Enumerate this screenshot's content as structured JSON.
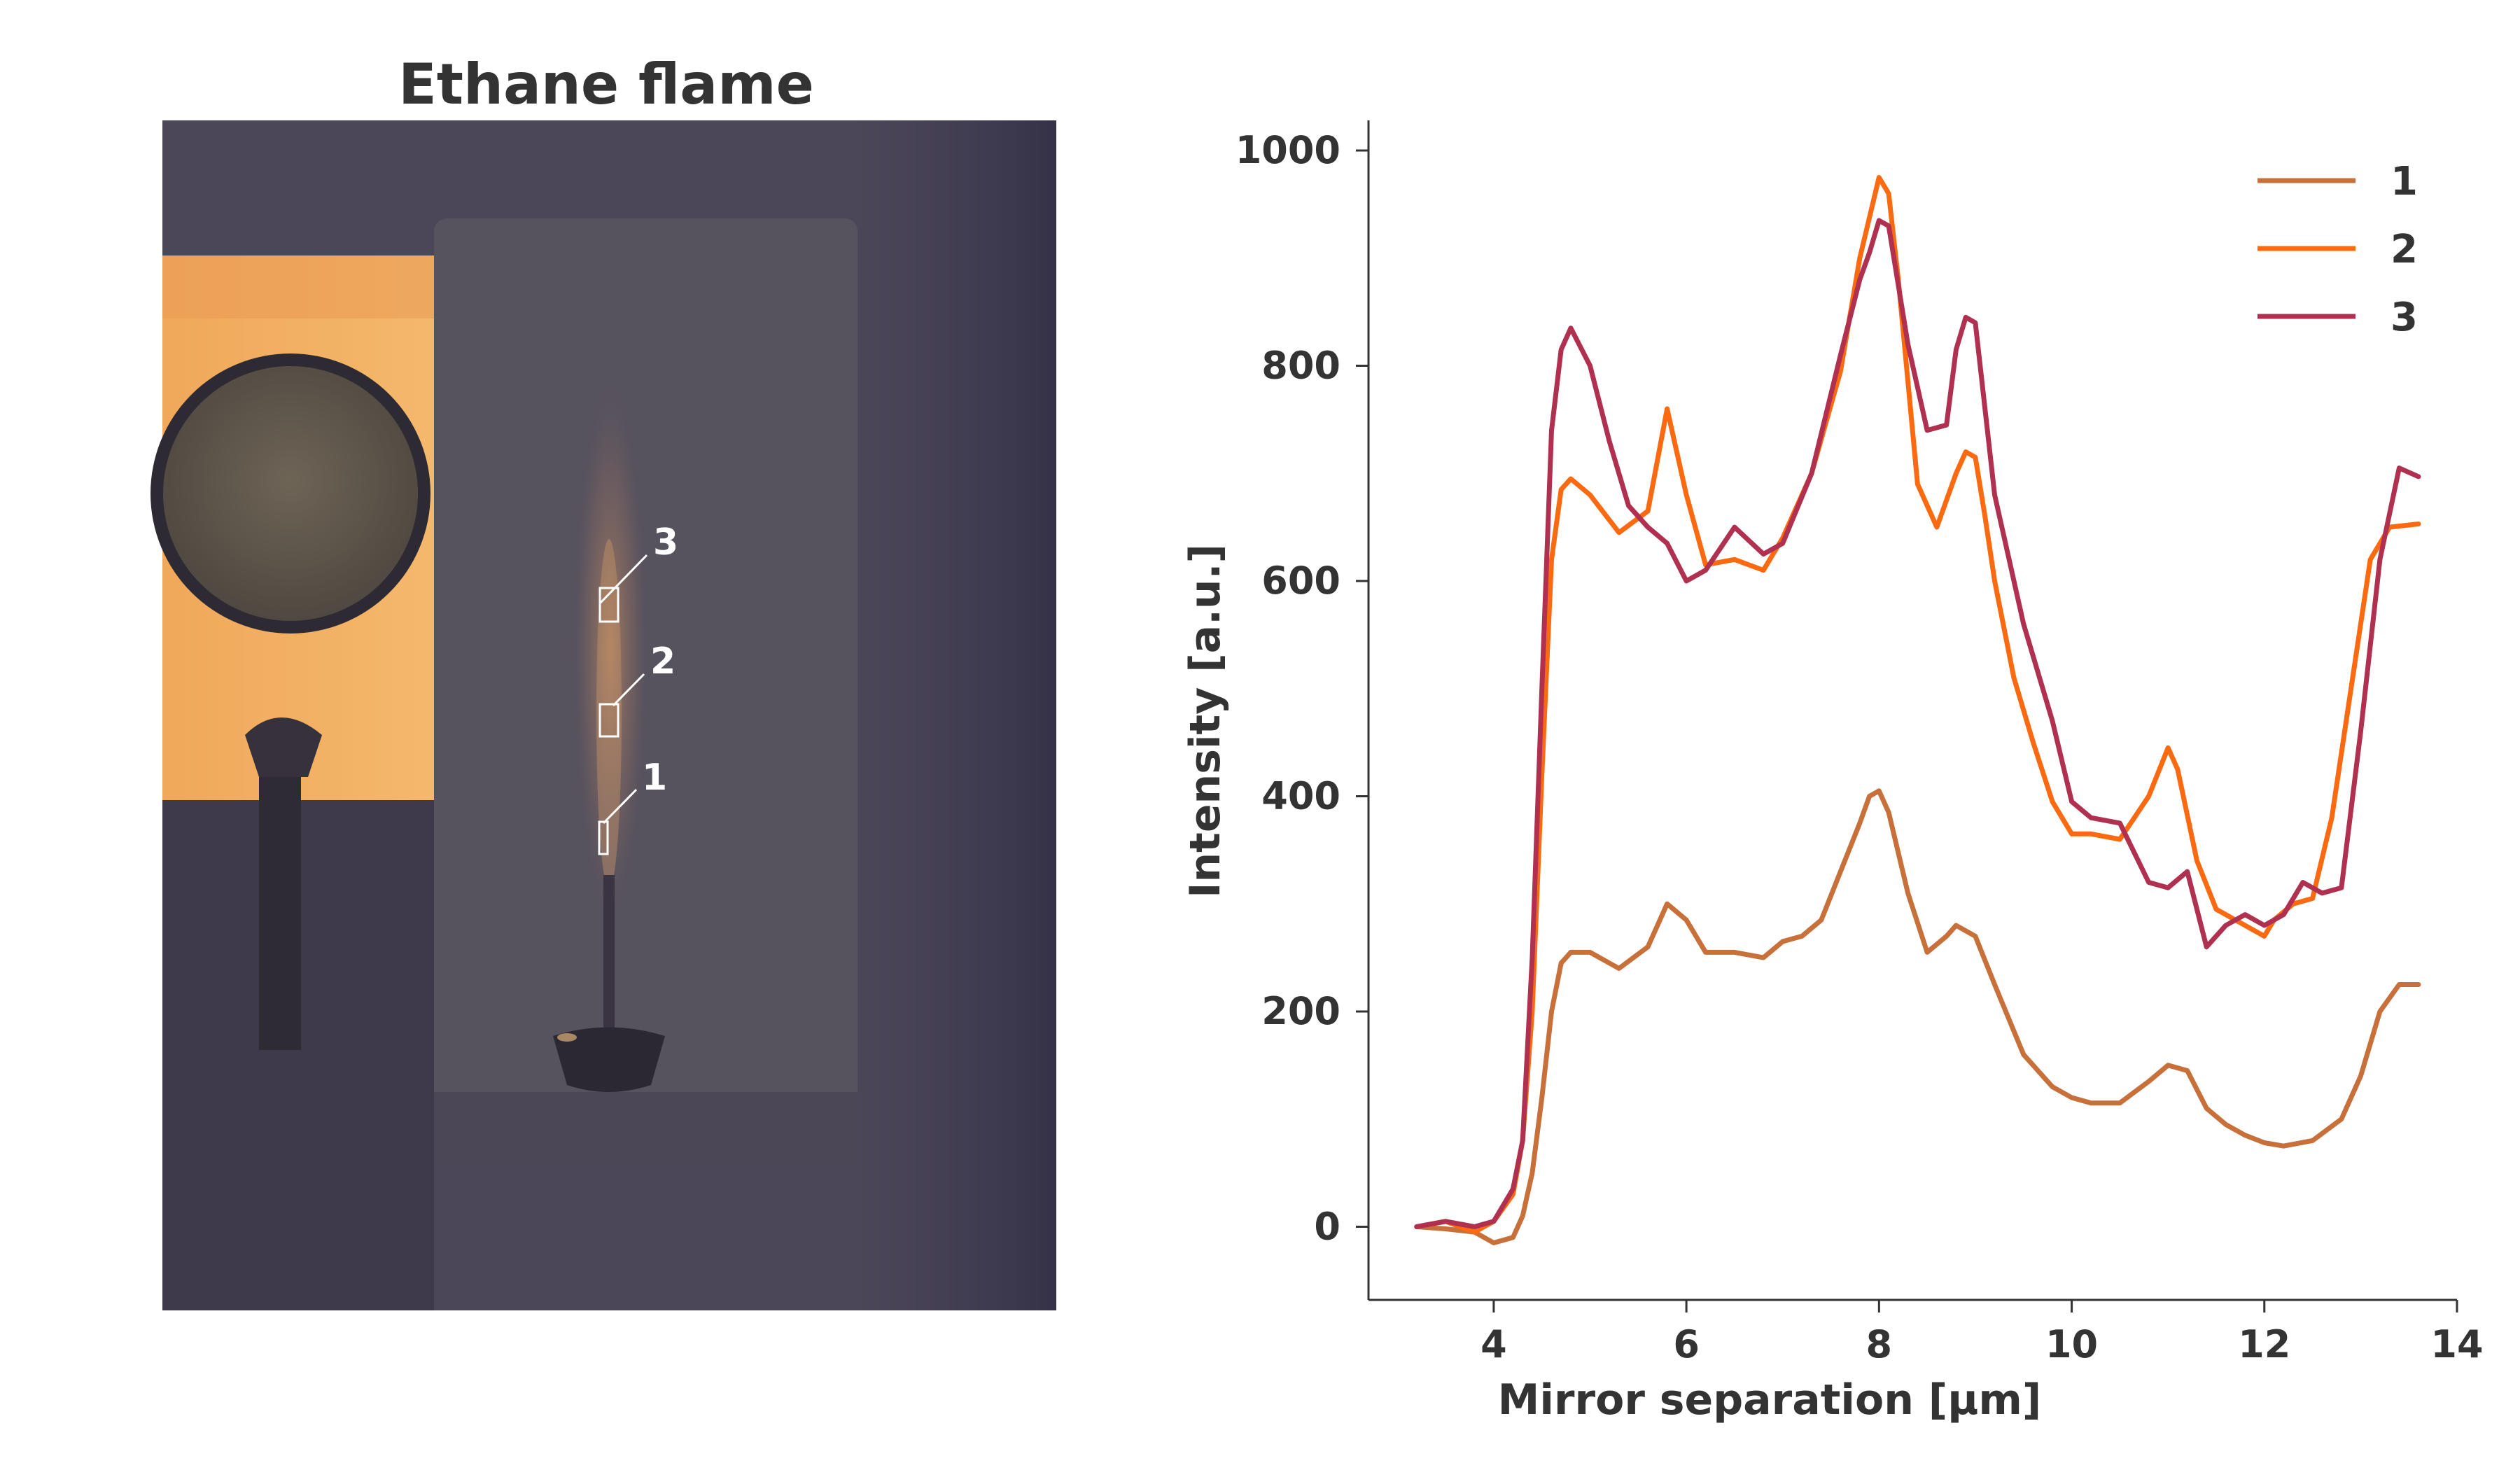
{
  "photo_panel": {
    "title": "Ethane flame",
    "regions": [
      {
        "label": "1"
      },
      {
        "label": "2"
      },
      {
        "label": "3"
      }
    ]
  },
  "colors": {
    "series_1": "#c8703a",
    "series_2": "#fb6a10",
    "series_3": "#b03050",
    "axis": "#333333"
  },
  "chart_data": {
    "type": "line",
    "title": "",
    "xlabel": "Mirror separation [μm]",
    "ylabel": "Intensity [a.u.]",
    "xlim": [
      2.7,
      14.0
    ],
    "ylim": [
      -68,
      1028
    ],
    "xticks": [
      4,
      6,
      8,
      10,
      12,
      14
    ],
    "yticks": [
      0,
      200,
      400,
      600,
      800,
      1000
    ],
    "grid": false,
    "legend_position": "top-right",
    "series": [
      {
        "name": "1",
        "color": "#c8703a",
        "x": [
          3.2,
          3.5,
          3.8,
          4.0,
          4.2,
          4.3,
          4.4,
          4.5,
          4.6,
          4.7,
          4.8,
          5.0,
          5.3,
          5.6,
          5.8,
          6.0,
          6.2,
          6.5,
          6.8,
          7.0,
          7.2,
          7.4,
          7.6,
          7.8,
          7.9,
          8.0,
          8.1,
          8.3,
          8.5,
          8.7,
          8.8,
          9.0,
          9.2,
          9.5,
          9.8,
          10.0,
          10.2,
          10.5,
          10.8,
          11.0,
          11.2,
          11.4,
          11.6,
          11.8,
          12.0,
          12.2,
          12.5,
          12.8,
          13.0,
          13.2,
          13.4,
          13.6
        ],
        "values": [
          0,
          -2,
          -5,
          -15,
          -10,
          10,
          50,
          120,
          200,
          245,
          255,
          255,
          240,
          260,
          300,
          285,
          255,
          255,
          250,
          265,
          270,
          285,
          330,
          375,
          400,
          405,
          385,
          310,
          255,
          270,
          280,
          270,
          225,
          160,
          130,
          120,
          115,
          115,
          135,
          150,
          145,
          110,
          95,
          85,
          78,
          75,
          80,
          100,
          140,
          200,
          225,
          225
        ]
      },
      {
        "name": "2",
        "color": "#fb6a10",
        "x": [
          3.2,
          3.5,
          3.8,
          4.0,
          4.2,
          4.3,
          4.4,
          4.5,
          4.6,
          4.7,
          4.8,
          5.0,
          5.3,
          5.6,
          5.8,
          6.0,
          6.2,
          6.5,
          6.8,
          7.0,
          7.3,
          7.6,
          7.8,
          8.0,
          8.1,
          8.2,
          8.4,
          8.6,
          8.8,
          8.9,
          9.0,
          9.1,
          9.2,
          9.4,
          9.6,
          9.8,
          10.0,
          10.2,
          10.5,
          10.8,
          11.0,
          11.1,
          11.3,
          11.5,
          11.7,
          11.9,
          12.0,
          12.1,
          12.3,
          12.5,
          12.7,
          12.9,
          13.1,
          13.3,
          13.6
        ],
        "values": [
          0,
          5,
          -5,
          5,
          30,
          80,
          200,
          420,
          620,
          685,
          695,
          680,
          645,
          665,
          760,
          680,
          615,
          620,
          610,
          640,
          700,
          795,
          900,
          975,
          960,
          880,
          690,
          650,
          700,
          720,
          715,
          660,
          600,
          510,
          450,
          395,
          365,
          365,
          360,
          400,
          445,
          425,
          340,
          295,
          285,
          275,
          270,
          285,
          300,
          305,
          380,
          500,
          620,
          650,
          653
        ]
      },
      {
        "name": "3",
        "color": "#b03050",
        "x": [
          3.2,
          3.5,
          3.8,
          4.0,
          4.2,
          4.3,
          4.4,
          4.5,
          4.6,
          4.7,
          4.8,
          5.0,
          5.2,
          5.4,
          5.6,
          5.8,
          6.0,
          6.2,
          6.5,
          6.8,
          7.0,
          7.3,
          7.6,
          7.8,
          7.9,
          8.0,
          8.1,
          8.3,
          8.5,
          8.7,
          8.8,
          8.9,
          9.0,
          9.2,
          9.5,
          9.8,
          10.0,
          10.2,
          10.5,
          10.8,
          11.0,
          11.2,
          11.4,
          11.6,
          11.8,
          12.0,
          12.2,
          12.4,
          12.6,
          12.8,
          13.0,
          13.2,
          13.4,
          13.6
        ],
        "values": [
          0,
          5,
          0,
          5,
          35,
          80,
          250,
          500,
          740,
          815,
          835,
          800,
          730,
          670,
          650,
          635,
          600,
          610,
          650,
          625,
          635,
          700,
          810,
          880,
          905,
          935,
          930,
          820,
          740,
          745,
          815,
          845,
          840,
          680,
          560,
          470,
          395,
          380,
          375,
          320,
          315,
          330,
          260,
          280,
          290,
          280,
          290,
          320,
          310,
          315,
          460,
          620,
          705,
          697
        ]
      }
    ]
  }
}
